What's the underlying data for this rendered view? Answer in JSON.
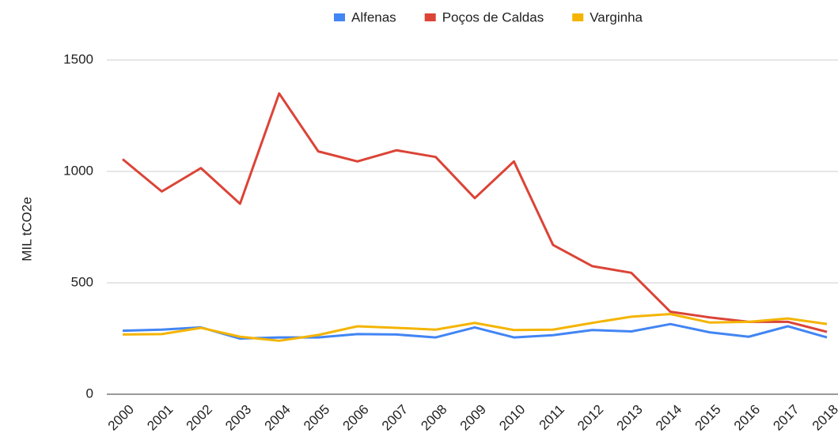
{
  "chart_data": {
    "type": "line",
    "y_label": "MIL tCO2e",
    "categories": [
      "2000",
      "2001",
      "2002",
      "2003",
      "2004",
      "2005",
      "2006",
      "2007",
      "2008",
      "2009",
      "2010",
      "2011",
      "2012",
      "2013",
      "2014",
      "2015",
      "2016",
      "2017",
      "2018"
    ],
    "series": [
      {
        "name": "Alfenas",
        "color": "#4285f4",
        "values": [
          285,
          290,
          300,
          250,
          255,
          255,
          270,
          268,
          255,
          300,
          255,
          265,
          288,
          282,
          315,
          278,
          258,
          305,
          255
        ]
      },
      {
        "name": "Poços de Caldas",
        "color": "#db4437",
        "values": [
          1055,
          910,
          1015,
          855,
          1350,
          1090,
          1045,
          1095,
          1065,
          880,
          1045,
          670,
          575,
          545,
          370,
          345,
          325,
          325,
          280
        ]
      },
      {
        "name": "Varginha",
        "color": "#f4b400",
        "values": [
          268,
          270,
          298,
          258,
          240,
          266,
          305,
          298,
          290,
          320,
          288,
          290,
          320,
          348,
          360,
          322,
          325,
          340,
          315
        ]
      }
    ],
    "ylim": [
      0,
      1500
    ],
    "yticks": [
      0,
      500,
      1000,
      1500
    ],
    "grid": true,
    "legend": "top"
  }
}
